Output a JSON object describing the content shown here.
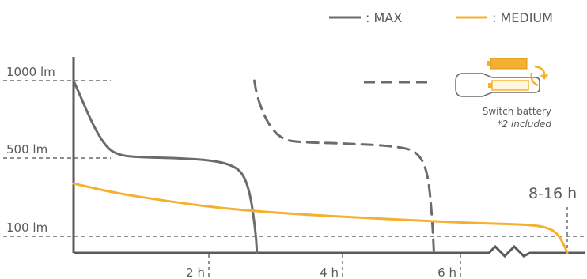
{
  "colors": {
    "max": "#6b6b6b",
    "medium": "#f5b030",
    "axis": "#5a5a5a",
    "guide": "#6b6b6b",
    "text": "#5a5a5a"
  },
  "legend": {
    "max_label": ": MAX",
    "medium_label": ": MEDIUM"
  },
  "annotations": {
    "duration_label": "8-16 h",
    "switch_battery_label": "Switch battery",
    "switch_battery_note": "*2 included",
    "icon": "flashlight-battery-swap-icon"
  },
  "chart_data": {
    "type": "line",
    "x_unit": "h",
    "y_unit": "lm",
    "y_ticks": [
      {
        "value": 1000,
        "label": "1000 lm"
      },
      {
        "value": 500,
        "label": "500 lm"
      },
      {
        "value": 100,
        "label": "100 lm"
      }
    ],
    "x_ticks": [
      {
        "value": 2,
        "label": "2 h"
      },
      {
        "value": 4,
        "label": "4 h"
      },
      {
        "value": 6,
        "label": "6 h"
      }
    ],
    "axis_break": true,
    "grid": false,
    "legend_position": "top-right",
    "series": [
      {
        "key": "max",
        "name": "MAX",
        "points": [
          [
            0,
            1000
          ],
          [
            0.1,
            900
          ],
          [
            0.3,
            700
          ],
          [
            0.5,
            560
          ],
          [
            0.7,
            515
          ],
          [
            1.0,
            505
          ],
          [
            1.5,
            500
          ],
          [
            2.0,
            490
          ],
          [
            2.3,
            470
          ],
          [
            2.5,
            430
          ],
          [
            2.62,
            320
          ],
          [
            2.7,
            120
          ],
          [
            2.72,
            0
          ]
        ]
      },
      {
        "key": "max_second_battery",
        "points": [
          [
            2.68,
            1000
          ],
          [
            2.72,
            900
          ],
          [
            2.85,
            750
          ],
          [
            3.0,
            660
          ],
          [
            3.1,
            630
          ],
          [
            3.2,
            610
          ],
          [
            3.5,
            600
          ],
          [
            4.0,
            595
          ],
          [
            5.0,
            575
          ],
          [
            5.3,
            530
          ],
          [
            5.45,
            420
          ],
          [
            5.52,
            200
          ],
          [
            5.55,
            0
          ]
        ]
      },
      {
        "key": "medium",
        "name": "MEDIUM",
        "points": [
          [
            0,
            370
          ],
          [
            0.5,
            330
          ],
          [
            1.0,
            300
          ],
          [
            2.0,
            250
          ],
          [
            3.0,
            220
          ],
          [
            4.0,
            200
          ],
          [
            5.0,
            185
          ],
          [
            6.0,
            170
          ],
          [
            7.0,
            160
          ],
          [
            7.3,
            150
          ],
          [
            7.5,
            120
          ],
          [
            7.62,
            40
          ],
          [
            7.66,
            0
          ]
        ]
      }
    ]
  }
}
